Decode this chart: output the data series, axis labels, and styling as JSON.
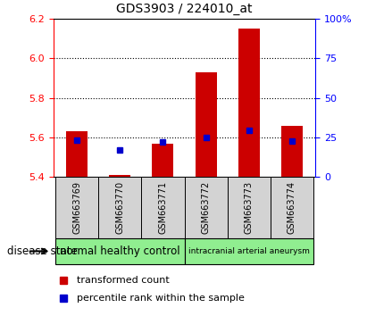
{
  "title": "GDS3903 / 224010_at",
  "samples": [
    "GSM663769",
    "GSM663770",
    "GSM663771",
    "GSM663772",
    "GSM663773",
    "GSM663774"
  ],
  "red_values": [
    5.63,
    5.41,
    5.57,
    5.93,
    6.15,
    5.66
  ],
  "blue_values": [
    5.585,
    5.535,
    5.578,
    5.598,
    5.635,
    5.583
  ],
  "ylim": [
    5.4,
    6.2
  ],
  "yticks": [
    5.4,
    5.6,
    5.8,
    6.0,
    6.2
  ],
  "right_ylim": [
    0,
    100
  ],
  "right_yticks": [
    0,
    25,
    50,
    75,
    100
  ],
  "right_yticklabels": [
    "0",
    "25",
    "50",
    "75",
    "100%"
  ],
  "bar_color": "#cc0000",
  "blue_color": "#0000cc",
  "group1_label": "normal healthy control",
  "group2_label": "intracranial arterial aneurysm",
  "group1_color": "#90ee90",
  "group2_color": "#90ee90",
  "disease_label": "disease state",
  "legend1": "transformed count",
  "legend2": "percentile rank within the sample",
  "bar_width": 0.5,
  "gray_bg": "#d3d3d3",
  "white_bg": "#ffffff"
}
